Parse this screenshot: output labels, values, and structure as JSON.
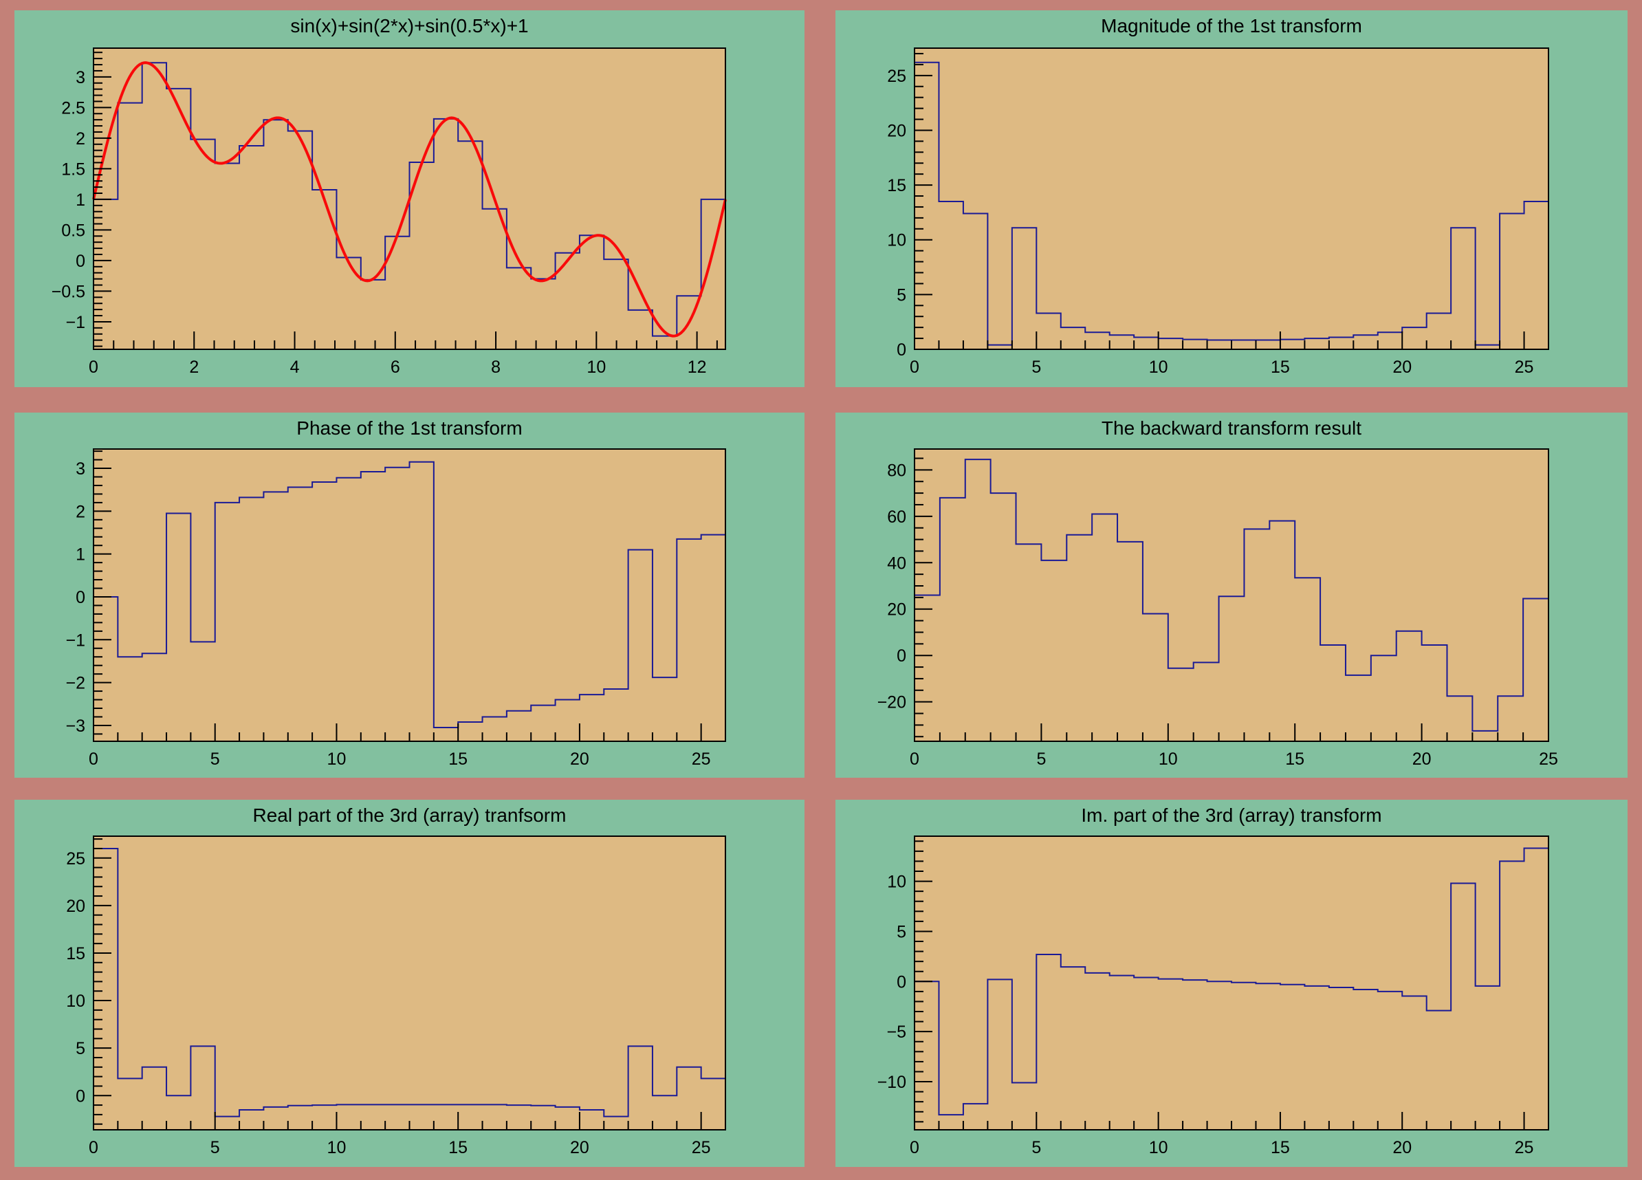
{
  "window": {
    "title": "ROOT FFT canvas"
  },
  "colors": {
    "canvas_bg": "#c38178",
    "pad_bg": "#82c09f",
    "frame_fill": "#deba83",
    "hist_line": "#1a1a96",
    "curve_line": "#f90a0a",
    "frame_border": "#000000",
    "text": "#000000"
  },
  "chart_data": [
    {
      "type": "bar",
      "style": "histogram-step+line",
      "title": "sin(x)+sin(2*x)+sin(0.5*x)+1",
      "x_range": [
        0,
        12.566
      ],
      "y_range": [
        -1.45,
        3.47
      ],
      "grid": false,
      "legend": "none",
      "x_ticks": {
        "values": [
          0,
          2,
          4,
          6,
          8,
          10,
          12
        ],
        "labels": [
          "0",
          "2",
          "4",
          "6",
          "8",
          "10",
          "12"
        ]
      },
      "x_minor_step": 0.4,
      "y_ticks": {
        "values": [
          -1,
          -0.5,
          0,
          0.5,
          1,
          1.5,
          2,
          2.5,
          3
        ],
        "labels": [
          "−1",
          "−0.5",
          "0",
          "0.5",
          "1",
          "1.5",
          "2",
          "2.5",
          "3"
        ]
      },
      "y_minor_step": 0.1,
      "bins": {
        "start": 0,
        "end": 12.566,
        "values": [
          1.0,
          2.576,
          3.232,
          2.808,
          1.98,
          1.588,
          1.875,
          2.299,
          2.117,
          1.156,
          0.049,
          -0.314,
          0.395,
          1.605,
          2.314,
          1.951,
          0.844,
          -0.117,
          -0.299,
          0.125,
          0.412,
          0.02,
          -0.808,
          -1.232,
          -0.576,
          1.0
        ]
      },
      "curve": {
        "expr": "sin(x)+sin(2*x)+sin(0.5*x)+1",
        "xmin": 0,
        "xmax": 12.566
      }
    },
    {
      "type": "bar",
      "style": "histogram-step",
      "title": "Magnitude of the 1st transform",
      "x_range": [
        0,
        26
      ],
      "y_range": [
        0,
        27.5
      ],
      "grid": false,
      "legend": "none",
      "x_ticks": {
        "values": [
          0,
          5,
          10,
          15,
          20,
          25
        ],
        "labels": [
          "0",
          "5",
          "10",
          "15",
          "20",
          "25"
        ]
      },
      "x_minor_step": 1,
      "y_ticks": {
        "values": [
          0,
          5,
          10,
          15,
          20,
          25
        ],
        "labels": [
          "0",
          "5",
          "10",
          "15",
          "20",
          "25"
        ]
      },
      "y_minor_step": 1,
      "bins": {
        "start": 0,
        "end": 26,
        "values": [
          26.2,
          13.5,
          12.4,
          0.4,
          11.1,
          3.3,
          2.0,
          1.55,
          1.3,
          1.1,
          1.0,
          0.9,
          0.85,
          0.85,
          0.85,
          0.9,
          1.0,
          1.1,
          1.3,
          1.55,
          2.0,
          3.3,
          11.1,
          0.4,
          12.4,
          13.5
        ]
      }
    },
    {
      "type": "bar",
      "style": "histogram-step",
      "title": "Phase of the 1st transform",
      "x_range": [
        0,
        26
      ],
      "y_range": [
        -3.37,
        3.45
      ],
      "grid": false,
      "legend": "none",
      "x_ticks": {
        "values": [
          0,
          5,
          10,
          15,
          20,
          25
        ],
        "labels": [
          "0",
          "5",
          "10",
          "15",
          "20",
          "25"
        ]
      },
      "x_minor_step": 1,
      "y_ticks": {
        "values": [
          -3,
          -2,
          -1,
          0,
          1,
          2,
          3
        ],
        "labels": [
          "−3",
          "−2",
          "−1",
          "0",
          "1",
          "2",
          "3"
        ]
      },
      "y_minor_step": 0.2,
      "bins": {
        "start": 0,
        "end": 26,
        "values": [
          0,
          -1.4,
          -1.32,
          1.95,
          -1.05,
          2.2,
          2.32,
          2.45,
          2.56,
          2.68,
          2.78,
          2.92,
          3.02,
          3.15,
          -3.05,
          -2.92,
          -2.8,
          -2.66,
          -2.53,
          -2.4,
          -2.28,
          -2.15,
          1.1,
          -1.88,
          1.35,
          1.45
        ]
      }
    },
    {
      "type": "bar",
      "style": "histogram-step",
      "title": "The backward transform result",
      "x_range": [
        0,
        25
      ],
      "y_range": [
        -37,
        89
      ],
      "grid": false,
      "legend": "none",
      "x_ticks": {
        "values": [
          0,
          5,
          10,
          15,
          20,
          25
        ],
        "labels": [
          "0",
          "5",
          "10",
          "15",
          "20",
          "25"
        ]
      },
      "x_minor_step": 1,
      "y_ticks": {
        "values": [
          -20,
          0,
          20,
          40,
          60,
          80
        ],
        "labels": [
          "−20",
          "0",
          "20",
          "40",
          "60",
          "80"
        ]
      },
      "y_minor_step": 5,
      "bins": {
        "start": 0,
        "end": 25,
        "values": [
          26,
          68,
          84.5,
          70,
          48,
          41,
          52,
          61,
          49,
          18,
          -5.5,
          -3,
          25.5,
          54.5,
          58,
          33.5,
          4.5,
          -8.5,
          0,
          10.5,
          4.5,
          -17.5,
          -32.5,
          -17.5,
          24.5
        ]
      }
    },
    {
      "type": "bar",
      "style": "histogram-step",
      "title": "Real part of the 3rd (array) tranfsorm",
      "x_range": [
        0,
        26
      ],
      "y_range": [
        -3.6,
        27.3
      ],
      "grid": false,
      "legend": "none",
      "x_ticks": {
        "values": [
          0,
          5,
          10,
          15,
          20,
          25
        ],
        "labels": [
          "0",
          "5",
          "10",
          "15",
          "20",
          "25"
        ]
      },
      "x_minor_step": 1,
      "y_ticks": {
        "values": [
          0,
          5,
          10,
          15,
          20,
          25
        ],
        "labels": [
          "0",
          "5",
          "10",
          "15",
          "20",
          "25"
        ]
      },
      "y_minor_step": 1,
      "bins": {
        "start": 0,
        "end": 26,
        "values": [
          26,
          1.8,
          3.0,
          0.0,
          5.2,
          -2.2,
          -1.5,
          -1.2,
          -1.05,
          -1.0,
          -0.95,
          -0.95,
          -0.95,
          -0.95,
          -0.95,
          -0.95,
          -0.95,
          -1.0,
          -1.05,
          -1.2,
          -1.5,
          -2.2,
          5.2,
          0.0,
          3.0,
          1.8
        ]
      }
    },
    {
      "type": "bar",
      "style": "histogram-step",
      "title": "Im. part of the 3rd (array) transform",
      "x_range": [
        0,
        26
      ],
      "y_range": [
        -14.8,
        14.5
      ],
      "grid": false,
      "legend": "none",
      "x_ticks": {
        "values": [
          0,
          5,
          10,
          15,
          20,
          25
        ],
        "labels": [
          "0",
          "5",
          "10",
          "15",
          "20",
          "25"
        ]
      },
      "x_minor_step": 1,
      "y_ticks": {
        "values": [
          -10,
          -5,
          0,
          5,
          10
        ],
        "labels": [
          "−10",
          "−5",
          "0",
          "5",
          "10"
        ]
      },
      "y_minor_step": 1,
      "bins": {
        "start": 0,
        "end": 26,
        "values": [
          0,
          -13.3,
          -12.2,
          0.2,
          -10.1,
          2.7,
          1.45,
          0.85,
          0.6,
          0.4,
          0.25,
          0.15,
          0.0,
          -0.1,
          -0.2,
          -0.3,
          -0.45,
          -0.6,
          -0.8,
          -1.0,
          -1.45,
          -2.9,
          9.8,
          -0.45,
          12.0,
          13.3
        ]
      }
    }
  ]
}
